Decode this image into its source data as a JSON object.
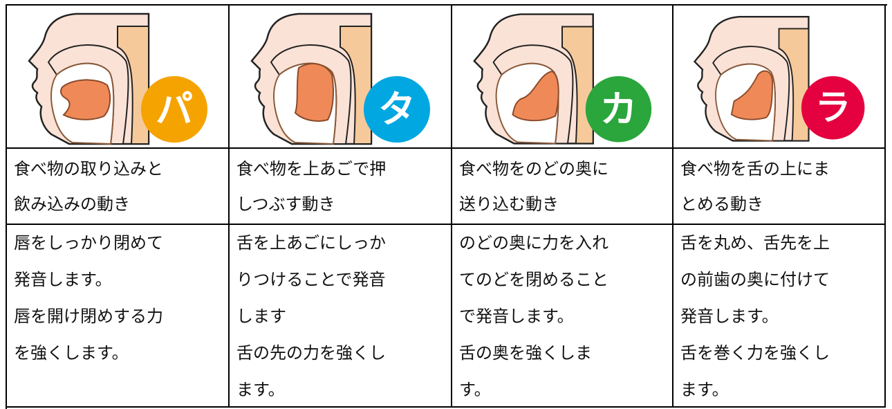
{
  "columns": [
    {
      "syllable": "パ",
      "description": [
        "食べ物の取り込みと",
        "飲み込みの動き"
      ],
      "details": [
        "唇をしっかり閉めて",
        "発音します。",
        "唇を開け閉めする力",
        "を強くします。"
      ]
    },
    {
      "syllable": "タ",
      "description": [
        "食べ物を上あごで押",
        "しつぶす動き"
      ],
      "details": [
        "舌を上あごにしっか",
        "りつけることで発音",
        "します",
        "舌の先の力を強くし",
        "ます。"
      ]
    },
    {
      "syllable": "カ",
      "description": [
        "食べ物をのどの奥に",
        "送り込む動き"
      ],
      "details": [
        "のどの奥に力を入れ",
        "てのどを閉めること",
        "で発音します。",
        "舌の奥を強くしま",
        "す。"
      ]
    },
    {
      "syllable": "ラ",
      "description": [
        "食べ物を舌の上にま",
        "とめる動き"
      ],
      "details": [
        "舌を丸め、舌先を上",
        "の前歯の奥に付けて",
        "発音します。",
        "舌を巻く力を強くし",
        "ます。"
      ]
    }
  ]
}
